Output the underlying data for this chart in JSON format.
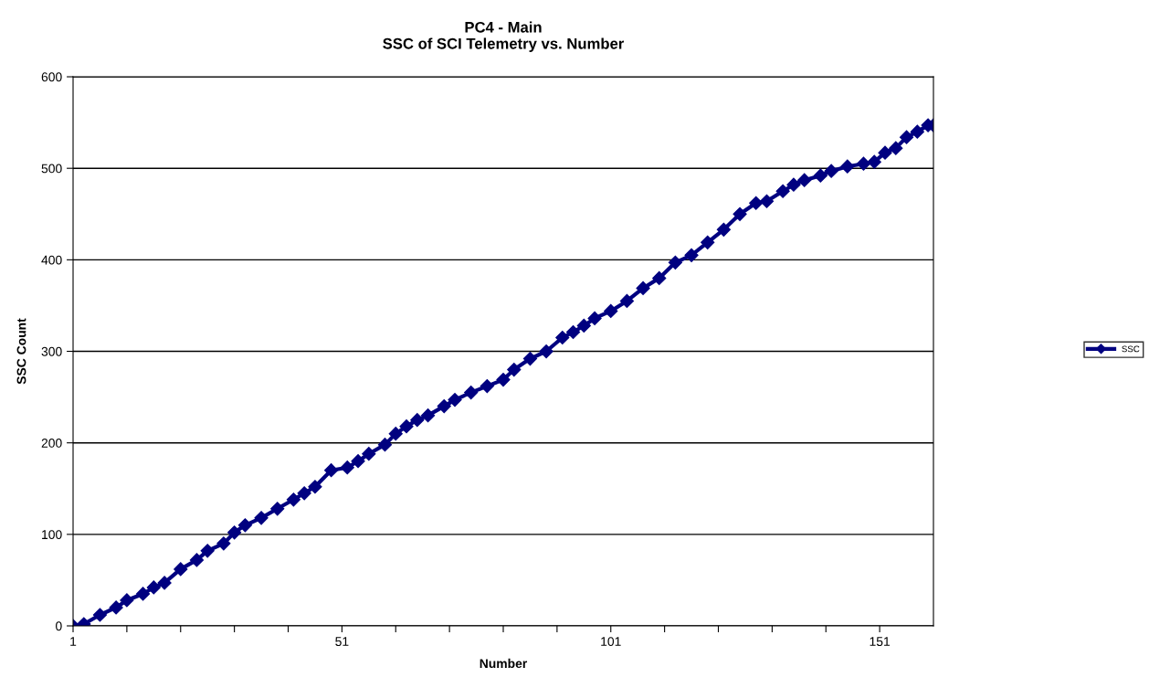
{
  "chart_data": {
    "type": "line",
    "title": "PC4 - Main\nSSC of SCI Telemetry vs. Number",
    "xlabel": "Number",
    "ylabel": "SSC Count",
    "series": [
      {
        "name": "SSC",
        "color": "#000080",
        "x": [
          1,
          3,
          6,
          9,
          11,
          14,
          16,
          18,
          21,
          24,
          26,
          29,
          31,
          33,
          36,
          39,
          42,
          44,
          46,
          49,
          52,
          54,
          56,
          59,
          61,
          63,
          65,
          67,
          70,
          72,
          75,
          78,
          81,
          83,
          86,
          89,
          92,
          94,
          96,
          98,
          101,
          104,
          107,
          110,
          113,
          116,
          119,
          122,
          125,
          128,
          130,
          133,
          135,
          137,
          140,
          142,
          145,
          148,
          150,
          152,
          154,
          156,
          158,
          160,
          161
        ],
        "values": [
          0,
          2,
          12,
          20,
          28,
          35,
          42,
          47,
          62,
          72,
          82,
          90,
          102,
          110,
          118,
          128,
          138,
          145,
          152,
          170,
          173,
          180,
          188,
          198,
          210,
          218,
          225,
          230,
          240,
          247,
          255,
          262,
          269,
          280,
          292,
          300,
          315,
          321,
          328,
          336,
          344,
          355,
          369,
          380,
          397,
          405,
          419,
          433,
          450,
          462,
          464,
          475,
          482,
          487,
          492,
          497,
          502,
          505,
          507,
          517,
          522,
          534,
          540,
          547,
          547
        ]
      }
    ],
    "xlim": [
      1,
      161
    ],
    "xticks": [
      1,
      {
        "value": 11,
        "label": null
      },
      {
        "value": 21,
        "label": null
      },
      {
        "value": 31,
        "label": null
      },
      {
        "value": 41,
        "label": null
      },
      51,
      {
        "value": 61,
        "label": null
      },
      {
        "value": 71,
        "label": null
      },
      {
        "value": 81,
        "label": null
      },
      {
        "value": 91,
        "label": null
      },
      101,
      {
        "value": 111,
        "label": null
      },
      {
        "value": 121,
        "label": null
      },
      {
        "value": 131,
        "label": null
      },
      {
        "value": 141,
        "label": null
      },
      151
    ],
    "ylim": [
      0,
      600
    ],
    "yticks": [
      0,
      100,
      200,
      300,
      400,
      500,
      600
    ],
    "grid": "y",
    "legend": "right",
    "marker": "diamond",
    "line_style": "solid"
  }
}
